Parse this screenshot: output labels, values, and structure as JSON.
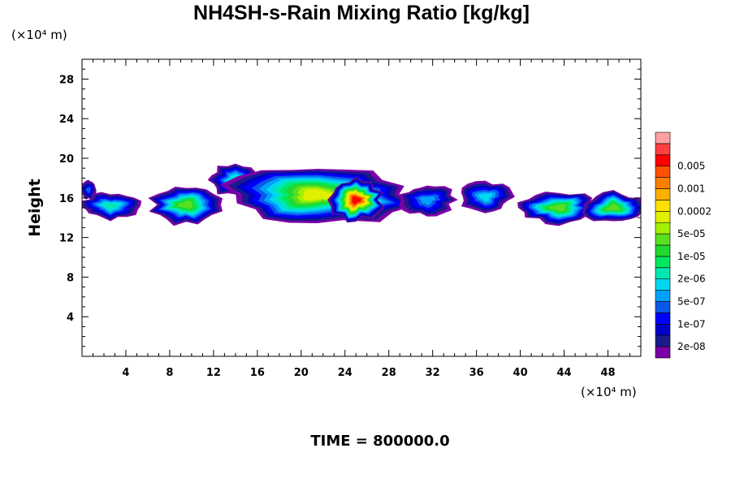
{
  "chart_data": {
    "type": "heatmap",
    "title": "NH4SH-s-Rain Mixing Ratio [kg/kg]",
    "xlabel": "",
    "ylabel": "Height",
    "x_unit": "(×10⁴ m)",
    "y_unit": "(×10⁴ m)",
    "xlim": [
      0,
      51
    ],
    "ylim": [
      0,
      30
    ],
    "xticks": [
      4,
      8,
      12,
      16,
      20,
      24,
      28,
      32,
      36,
      40,
      44,
      48
    ],
    "yticks": [
      4,
      8,
      12,
      16,
      20,
      24,
      28
    ],
    "grid": false,
    "colorbar": {
      "placement": "right",
      "colors": [
        "#7a00a8",
        "#1a1a8c",
        "#0000c8",
        "#0000ff",
        "#0b58e8",
        "#00a0ff",
        "#00d8f0",
        "#00e8b0",
        "#00e860",
        "#20d830",
        "#58e020",
        "#a0f000",
        "#e0f000",
        "#ffe000",
        "#ffb000",
        "#ff8000",
        "#ff5000",
        "#ff0000",
        "#ff4040",
        "#ffa0a0"
      ],
      "labels": [
        "2e-08",
        "1e-07",
        "5e-07",
        "2e-06",
        "1e-05",
        "5e-05",
        "0.0002",
        "0.001",
        "0.005"
      ]
    },
    "regions": [
      {
        "cx": 2.6,
        "cy": 15.2,
        "rx": 2.6,
        "ry": 1.4,
        "level": 0.38
      },
      {
        "cx": 0.6,
        "cy": 16.8,
        "rx": 0.7,
        "ry": 1.0,
        "level": 0.2
      },
      {
        "cx": 9.5,
        "cy": 15.3,
        "rx": 3.3,
        "ry": 2.0,
        "level": 0.5
      },
      {
        "cx": 14.0,
        "cy": 17.8,
        "rx": 2.5,
        "ry": 1.6,
        "level": 0.35
      },
      {
        "cx": 21.5,
        "cy": 16.3,
        "rx": 8.5,
        "ry": 3.0,
        "level": 0.65
      },
      {
        "cx": 25.0,
        "cy": 15.8,
        "rx": 2.4,
        "ry": 2.2,
        "level": 0.9
      },
      {
        "cx": 31.5,
        "cy": 15.8,
        "rx": 2.5,
        "ry": 1.6,
        "level": 0.25
      },
      {
        "cx": 36.8,
        "cy": 16.1,
        "rx": 2.5,
        "ry": 1.5,
        "level": 0.32
      },
      {
        "cx": 43.5,
        "cy": 15.0,
        "rx": 3.6,
        "ry": 1.6,
        "level": 0.55
      },
      {
        "cx": 48.5,
        "cy": 15.0,
        "rx": 3.0,
        "ry": 1.6,
        "level": 0.55
      }
    ]
  },
  "time_label": "TIME = 800000.0"
}
